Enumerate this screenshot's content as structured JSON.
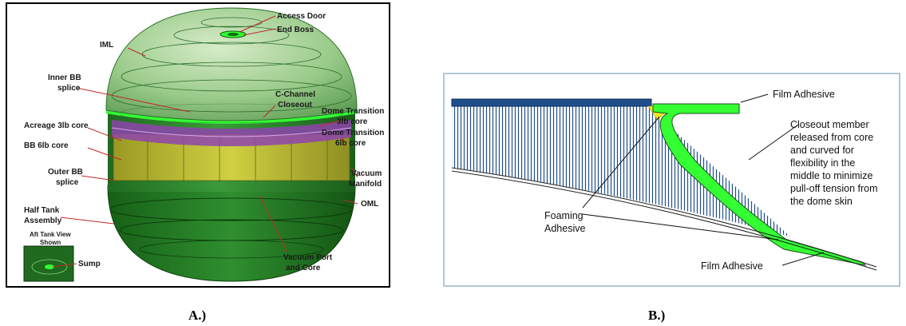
{
  "panel_a": {
    "caption": "A.)",
    "labels": {
      "access_door": "Access Door",
      "end_boss": "End Boss",
      "iml": "IML",
      "inner_bb_splice_1": "Inner BB",
      "inner_bb_splice_2": "splice",
      "c_channel_1": "C-Channel",
      "c_channel_2": "Closeout",
      "dome_transition_3lb_1": "Dome Transition",
      "dome_transition_3lb_2": "3lb core",
      "acreage_core": "Acreage 3lb core",
      "dome_transition_6lb_1": "Dome Transition",
      "dome_transition_6lb_2": "6lb core",
      "bb_core": "BB 6lb core",
      "vacuum_manifold_1": "Vacuum",
      "vacuum_manifold_2": "Manifold",
      "outer_bb_splice_1": "Outer BB",
      "outer_bb_splice_2": "splice",
      "oml": "OML",
      "half_tank_1": "Half Tank",
      "half_tank_2": "Assembly",
      "aft_view_1": "Aft Tank View",
      "aft_view_2": "Shown",
      "sump": "Sump",
      "vacuum_port_1": "Vacuum Port",
      "vacuum_port_2": "and Core"
    }
  },
  "panel_b": {
    "caption": "B.)",
    "labels": {
      "film_adhesive_top": "Film Adhesive",
      "closeout_1": "Closeout member",
      "closeout_2": "released from core",
      "closeout_3": "and curved for",
      "closeout_4": "flexibility in the",
      "closeout_5": "middle to minimize",
      "closeout_6": "pull-off tension from",
      "closeout_7": "the dome skin",
      "foaming_1": "Foaming",
      "foaming_2": "Adhesive",
      "film_adhesive_bottom": "Film Adhesive"
    }
  },
  "colors": {
    "tank_green": "#2e8b2e",
    "dome_green": "#9acb8a",
    "bright_green": "#33ff33",
    "core_yellow": "#c8c832",
    "manifold_purple": "#9b59b6",
    "leader_red": "#c0282a",
    "hatch_blue": "#1f4e8c",
    "adhesive_yellow": "#f5e61e"
  }
}
